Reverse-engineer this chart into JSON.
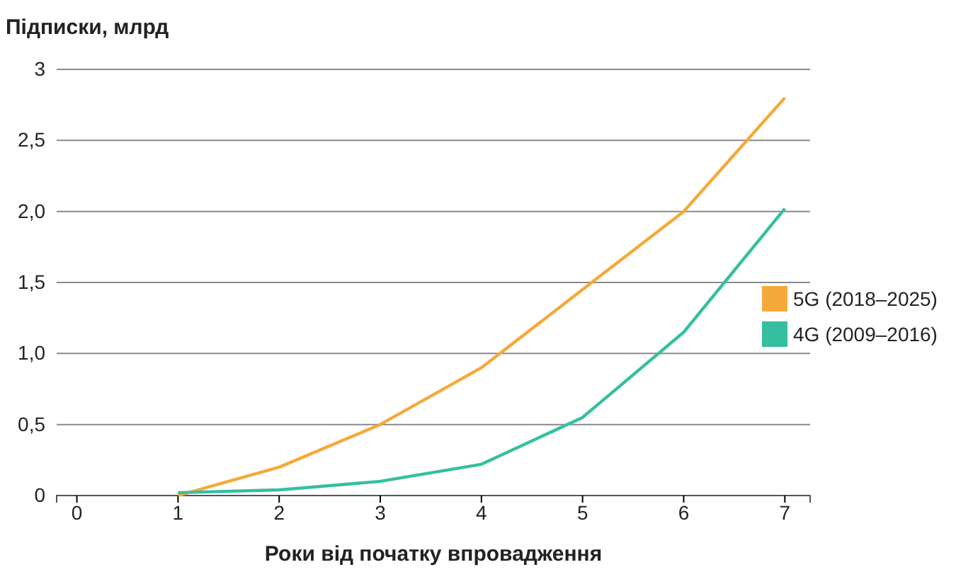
{
  "chart_data": {
    "type": "line",
    "ylabel": "Підписки, млрд",
    "xlabel": "Роки від початку впровадження",
    "x": [
      1,
      2,
      3,
      4,
      5,
      6,
      7
    ],
    "series": [
      {
        "name": "5G (2018–2025)",
        "color": "#f5a93a",
        "values": [
          0.0,
          0.2,
          0.5,
          0.9,
          1.45,
          2.0,
          2.8
        ]
      },
      {
        "name": "4G (2009–2016)",
        "color": "#35bfa0",
        "values": [
          0.02,
          0.04,
          0.1,
          0.22,
          0.55,
          1.15,
          2.02
        ]
      }
    ],
    "xlim": [
      -0.2,
      7.25
    ],
    "xticks": [
      0,
      1,
      2,
      3,
      4,
      5,
      6,
      7
    ],
    "ylim": [
      0,
      3
    ],
    "yticks": [
      0,
      {
        "value": 0.5,
        "label": "0,5"
      },
      {
        "value": 1,
        "label": "1,0"
      },
      {
        "value": 1.5,
        "label": "1,5"
      },
      {
        "value": 2,
        "label": "2,0"
      },
      {
        "value": 2.5,
        "label": "2,5"
      },
      3
    ],
    "grid": "y",
    "legend": "right",
    "marker": "none",
    "line_style": "solid"
  }
}
